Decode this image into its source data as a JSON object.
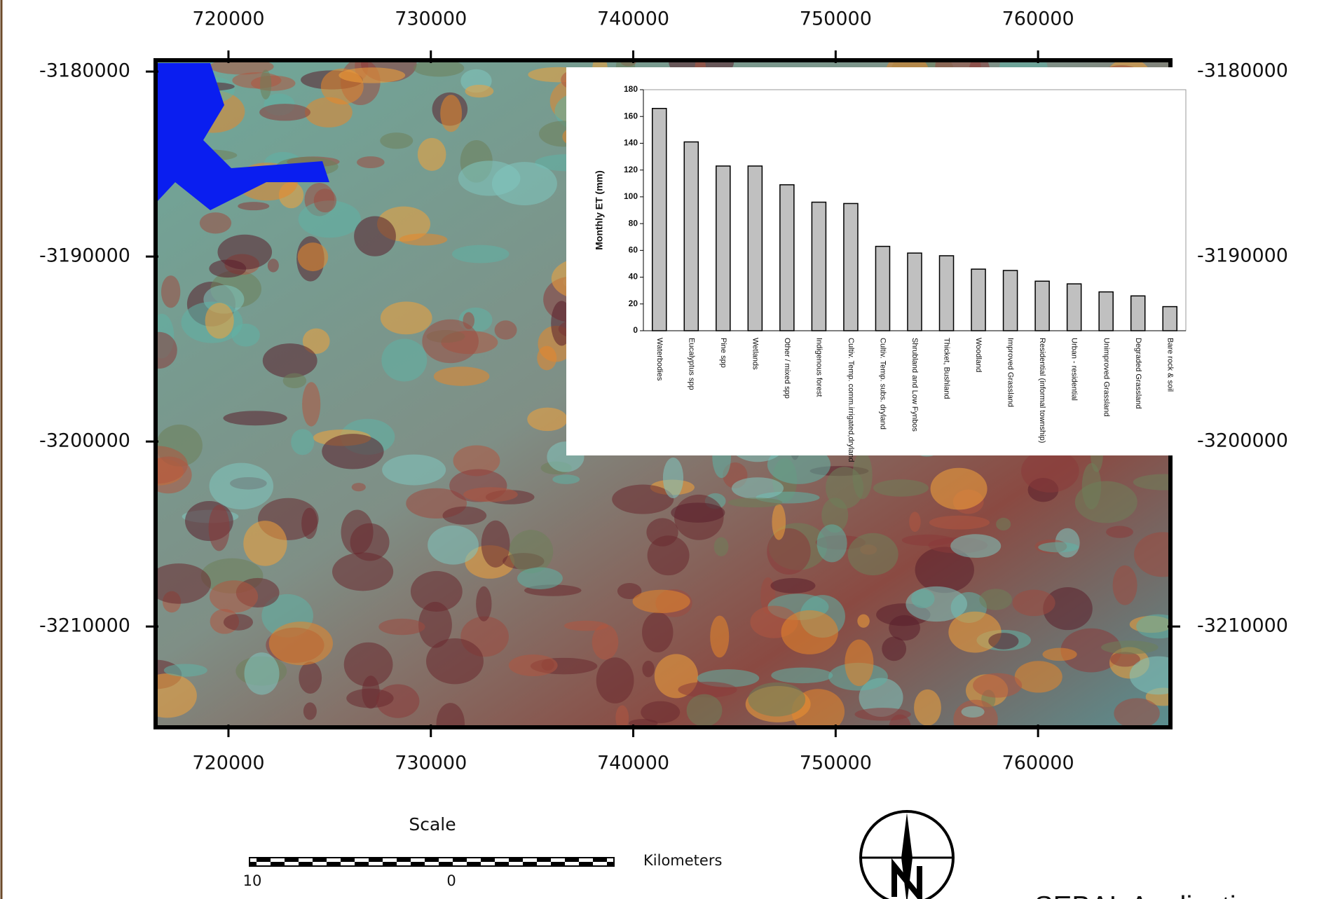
{
  "map": {
    "xlim": [
      716400,
      766540
    ],
    "ylim": [
      -3215450,
      -3179390
    ],
    "xticks": [
      720000,
      730000,
      740000,
      750000,
      760000
    ],
    "yticks": [
      -3180000,
      -3190000,
      -3200000,
      -3210000
    ],
    "scale_title": "Scale",
    "scale_unit": "Kilometers",
    "scale_labels": [
      "10",
      "0"
    ],
    "caption": "SEBAL Application"
  },
  "chart_data": {
    "type": "bar",
    "ylabel": "Monthly ET (mm)",
    "categories": [
      "Waterbodies",
      "Eucalyptus spp",
      "Pine spp",
      "Wetlands",
      "Other / mixed spp",
      "Indigenous forest",
      "Cultiv. Temp. comm.irrigated,dryland",
      "Cultiv. Temp. subs. dryland",
      "Shrubland and Low Fynbos",
      "Thicket, Bushland",
      "Woodland",
      "Improved Grassland",
      "Residential (informal township)",
      "Urban - residential",
      "Unimproved Grassland",
      "Degraded Grassland",
      "Bare rock & soil"
    ],
    "values": [
      166,
      141,
      123,
      123,
      109,
      96,
      95,
      63,
      58,
      56,
      46,
      45,
      37,
      35,
      29,
      26,
      18
    ],
    "color": "#c0c0c0",
    "ylim": [
      0,
      180
    ],
    "yticks": [
      0,
      20,
      40,
      60,
      80,
      100,
      120,
      140,
      160,
      180
    ]
  }
}
